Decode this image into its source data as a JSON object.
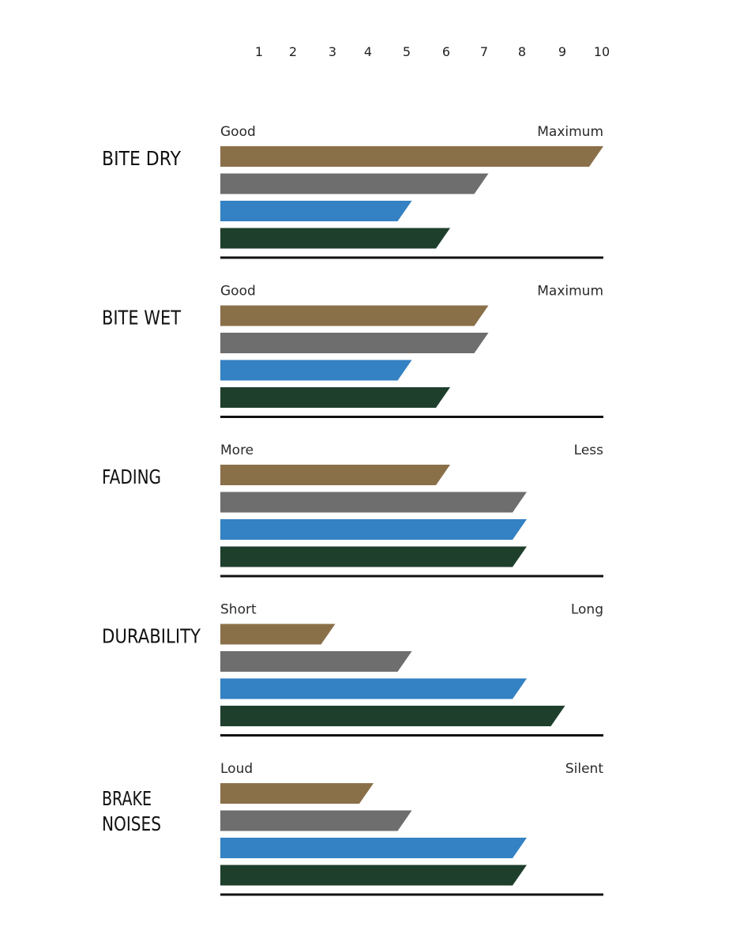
{
  "chart_data": {
    "type": "bar",
    "orientation": "horizontal",
    "scale_ticks": [
      "1",
      "2",
      "3",
      "4",
      "5",
      "6",
      "7",
      "8",
      "9",
      "10"
    ],
    "xlim": [
      0,
      10
    ],
    "series_colors": [
      "#8a7049",
      "#6e6e6e",
      "#3481c3",
      "#1f3f2d"
    ],
    "groups": [
      {
        "label_lines": [
          "BITE DRY"
        ],
        "low": "Good",
        "high": "Maximum",
        "values": [
          10,
          7,
          5,
          6
        ]
      },
      {
        "label_lines": [
          "BITE WET"
        ],
        "low": "Good",
        "high": "Maximum",
        "values": [
          7,
          7,
          5,
          6
        ]
      },
      {
        "label_lines": [
          "FADING"
        ],
        "low": "More",
        "high": "Less",
        "values": [
          6,
          8,
          8,
          8
        ]
      },
      {
        "label_lines": [
          "DURABILITY"
        ],
        "low": "Short",
        "high": "Long",
        "values": [
          3,
          5,
          8,
          9
        ]
      },
      {
        "label_lines": [
          "BRAKE",
          "NOISES"
        ],
        "low": "Loud",
        "high": "Silent",
        "values": [
          4,
          5,
          8,
          8
        ]
      }
    ]
  }
}
